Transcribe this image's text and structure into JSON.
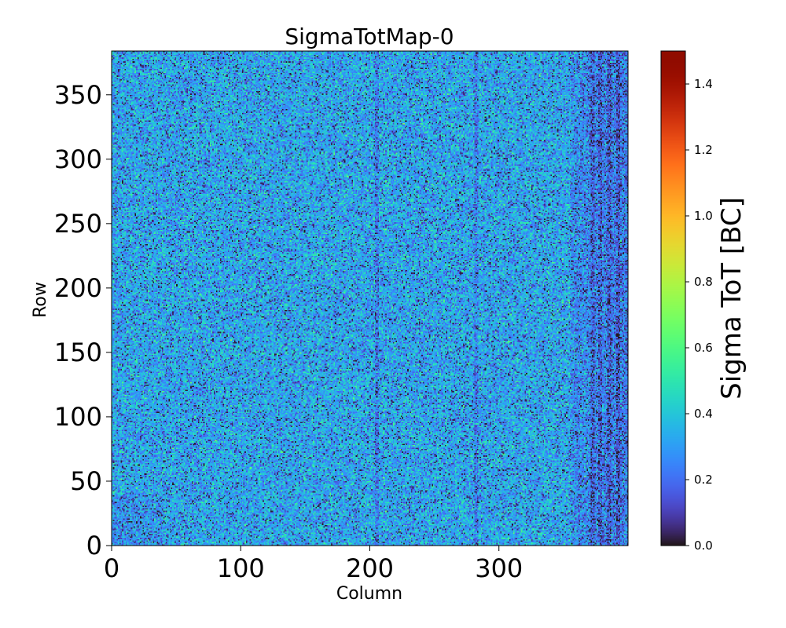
{
  "chart_data": {
    "type": "heatmap",
    "title": "SigmaTotMap-0",
    "xlabel": "Column",
    "ylabel": "Row",
    "xlim": [
      0,
      400
    ],
    "ylim": [
      0,
      384
    ],
    "x_ticks": [
      0,
      100,
      200,
      300
    ],
    "x_tick_labels": [
      "0",
      "100",
      "200",
      "300"
    ],
    "y_ticks": [
      0,
      50,
      100,
      150,
      200,
      250,
      300,
      350
    ],
    "y_tick_labels": [
      "0",
      "50",
      "100",
      "150",
      "200",
      "250",
      "300",
      "350"
    ],
    "colorbar": {
      "label": "Sigma ToT [BC]",
      "range": [
        0.0,
        1.5
      ],
      "ticks": [
        0.0,
        0.2,
        0.4,
        0.6,
        0.8,
        1.0,
        1.2,
        1.4
      ],
      "tick_labels": [
        "0.0",
        "0.2",
        "0.4",
        "0.6",
        "0.8",
        "1.0",
        "1.2",
        "1.4"
      ],
      "colormap": "turbo"
    },
    "grid_shape": [
      384,
      400
    ],
    "value_distribution": {
      "typical_mean": 0.32,
      "typical_spread": 0.11,
      "dark_columns_approx": [
        205,
        282,
        372,
        378,
        385,
        392
      ],
      "dark_regions": [
        "lower-left corner",
        "right band columns 360-400"
      ]
    }
  }
}
